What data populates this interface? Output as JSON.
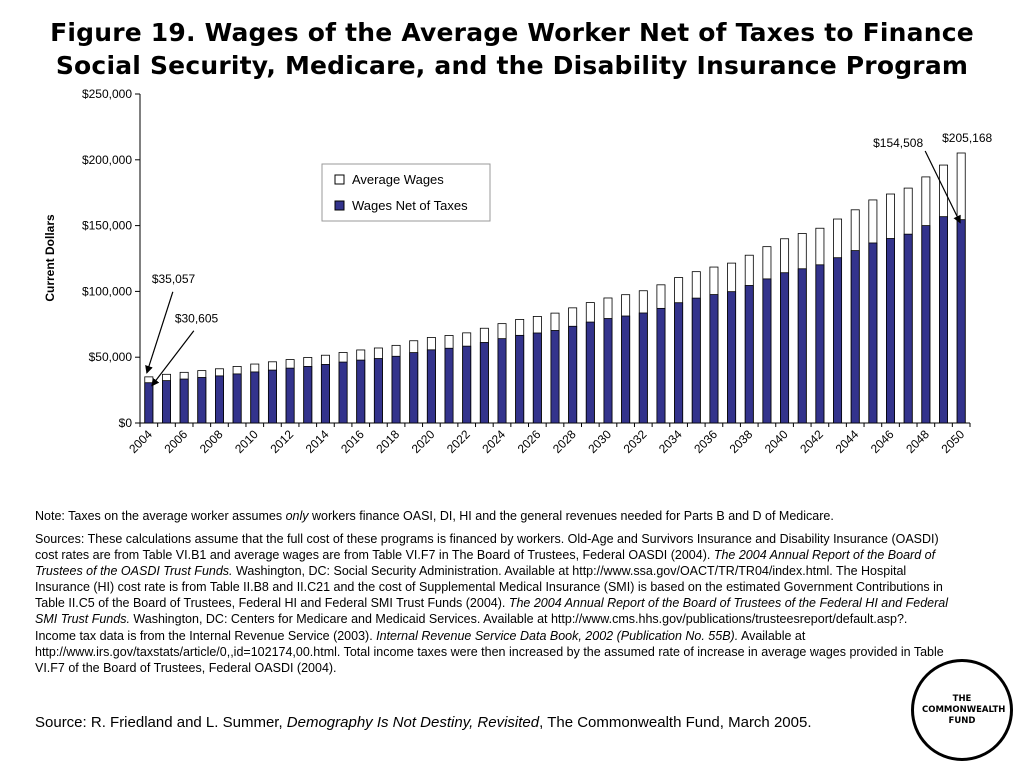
{
  "title": {
    "line1": "Figure 19. Wages of the Average Worker Net of Taxes to Finance",
    "line2": "Social Security, Medicare, and the Disability Insurance Program"
  },
  "chart_data": {
    "type": "bar",
    "ylabel": "Current Dollars",
    "xlabel": "",
    "ylim": [
      0,
      250000
    ],
    "y_ticks": [
      "$0",
      "$50,000",
      "$100,000",
      "$150,000",
      "$200,000",
      "$250,000"
    ],
    "x": [
      2004,
      2005,
      2006,
      2007,
      2008,
      2009,
      2010,
      2011,
      2012,
      2013,
      2014,
      2015,
      2016,
      2017,
      2018,
      2019,
      2020,
      2021,
      2022,
      2023,
      2024,
      2025,
      2026,
      2027,
      2028,
      2029,
      2030,
      2031,
      2032,
      2033,
      2034,
      2035,
      2036,
      2037,
      2038,
      2039,
      2040,
      2041,
      2042,
      2043,
      2044,
      2045,
      2046,
      2047,
      2048,
      2049,
      2050
    ],
    "x_tick_labels": [
      "2004",
      "2006",
      "2008",
      "2010",
      "2012",
      "2014",
      "2016",
      "2018",
      "2020",
      "2022",
      "2024",
      "2026",
      "2028",
      "2030",
      "2032",
      "2034",
      "2036",
      "2038",
      "2040",
      "2042",
      "2044",
      "2046",
      "2048",
      "2050"
    ],
    "series": [
      {
        "name": "Average Wages",
        "color": "#ffffff",
        "values": [
          35057,
          37000,
          38500,
          39800,
          41200,
          43000,
          44800,
          46500,
          48200,
          49800,
          51500,
          53600,
          55500,
          57000,
          59000,
          62500,
          65000,
          66500,
          68500,
          72000,
          75500,
          78700,
          81000,
          83500,
          87500,
          91500,
          95000,
          97500,
          100500,
          105000,
          110500,
          115000,
          118500,
          121500,
          127500,
          134000,
          140000,
          144000,
          148000,
          155000,
          162000,
          169500,
          174000,
          178500,
          187000,
          196000,
          205168
        ]
      },
      {
        "name": "Wages Net of Taxes",
        "color": "#33338c",
        "values": [
          30605,
          32200,
          33400,
          34600,
          35800,
          37300,
          38800,
          40200,
          41700,
          43000,
          44500,
          46300,
          47800,
          49000,
          50700,
          53500,
          55600,
          56800,
          58400,
          61200,
          64100,
          66600,
          68400,
          70300,
          73500,
          76700,
          79400,
          81300,
          83600,
          87100,
          91400,
          94900,
          97600,
          99800,
          104500,
          109500,
          114200,
          117200,
          120200,
          125600,
          131000,
          136800,
          140200,
          143500,
          150000,
          156800,
          154508
        ]
      }
    ],
    "annotations": [
      {
        "text": "$35,057",
        "x": 2004,
        "y": 35057
      },
      {
        "text": "$30,605",
        "x": 2004,
        "y": 30605
      },
      {
        "text": "$154,508",
        "x": 2050,
        "y": 154508
      },
      {
        "text": "$205,168",
        "x": 2050,
        "y": 205168
      }
    ],
    "legend": {
      "placement": "upper-center",
      "items": [
        "Average Wages",
        "Wages Net of Taxes"
      ]
    },
    "grid": false
  },
  "notes": {
    "note_prefix": "Note: Taxes on the average worker assumes ",
    "note_italic": "only",
    "note_suffix": " workers finance OASI, DI, HI and the general revenues needed for Parts B and D of Medicare.",
    "sources_1": "Sources: These calculations assume that the full cost of these programs is financed by workers. Old-Age and Survivors Insurance and Disability Insurance (OASDI) cost rates are from Table VI.B1 and average wages are from Table VI.F7 in The Board of Trustees, Federal OASDI (2004). ",
    "sources_1_italic": "The 2004 Annual Report of the Board of Trustees of the OASDI Trust Funds.",
    "sources_2": " Washington, DC: Social Security Administration. Available at http://www.ssa.gov/OACT/TR/TR04/index.html. The Hospital Insurance (HI) cost rate is from Table II.B8 and II.C21 and the cost of Supplemental Medical Insurance (SMI) is based on the estimated Government Contributions in Table II.C5 of the Board of Trustees, Federal HI and Federal SMI Trust Funds (2004). ",
    "sources_2_italic": "The 2004 Annual Report of the Board of Trustees of the Federal HI and Federal SMI Trust Funds.",
    "sources_3": " Washington, DC: Centers for Medicare and Medicaid Services. Available at http://www.cms.hhs.gov/publications/trusteesreport/default.asp?. Income tax data is from the Internal Revenue Service (2003). ",
    "sources_3_italic": "Internal Revenue Service Data Book, 2002 (Publication No. 55B).",
    "sources_4": " Available at http://www.irs.gov/taxstats/article/0,,id=102174,00.html. Total income taxes were then increased by the assumed rate of increase in average wages provided in Table VI.F7 of the Board of Trustees, Federal OASDI (2004)."
  },
  "source": {
    "prefix": "Source: R. Friedland and L. Summer, ",
    "italic": "Demography Is Not Destiny, Revisited",
    "suffix": ", The Commonwealth Fund, March 2005."
  },
  "logo": {
    "line1": "THE",
    "line2": "COMMONWEALTH",
    "line3": "FUND"
  }
}
